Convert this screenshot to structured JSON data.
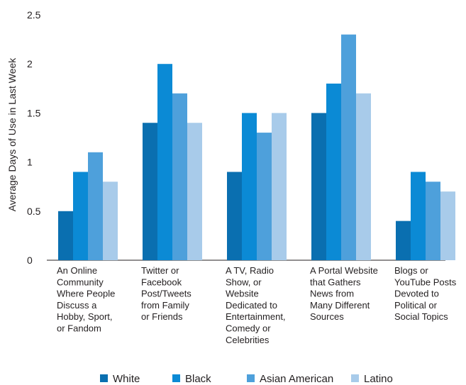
{
  "chart_data": {
    "type": "bar",
    "ylabel": "Average Days of Use in Last Week",
    "ylim": [
      0,
      2.5
    ],
    "yticks": [
      "0",
      "0.5",
      "1",
      "1.5",
      "2",
      "2.5"
    ],
    "categories": [
      [
        "An Online",
        "Community",
        "Where People",
        "Discuss a",
        "Hobby, Sport,",
        "or Fandom"
      ],
      [
        "Twitter or",
        "Facebook",
        "Post/Tweets",
        "from Family",
        "or Friends"
      ],
      [
        "A TV, Radio",
        "Show, or",
        "Website",
        "Dedicated to",
        "Entertainment,",
        "Comedy or",
        "Celebrities"
      ],
      [
        "A Portal Website",
        "that Gathers",
        "News from",
        "Many Different",
        "Sources"
      ],
      [
        "Blogs or",
        "YouTube Posts",
        "Devoted to",
        "Political or",
        "Social Topics"
      ]
    ],
    "series": [
      {
        "name": "White",
        "color": "#0a6fb0",
        "values": [
          0.5,
          1.4,
          0.9,
          1.5,
          0.4
        ]
      },
      {
        "name": "Black",
        "color": "#0b8ad5",
        "values": [
          0.9,
          2.0,
          1.5,
          1.8,
          0.9
        ]
      },
      {
        "name": "Asian American",
        "color": "#4ea0db",
        "values": [
          1.1,
          1.7,
          1.3,
          2.3,
          0.8
        ]
      },
      {
        "name": "Latino",
        "color": "#a8cbea",
        "values": [
          0.8,
          1.4,
          1.5,
          1.7,
          0.7
        ]
      }
    ],
    "grid": false,
    "legend_position": "bottom"
  }
}
